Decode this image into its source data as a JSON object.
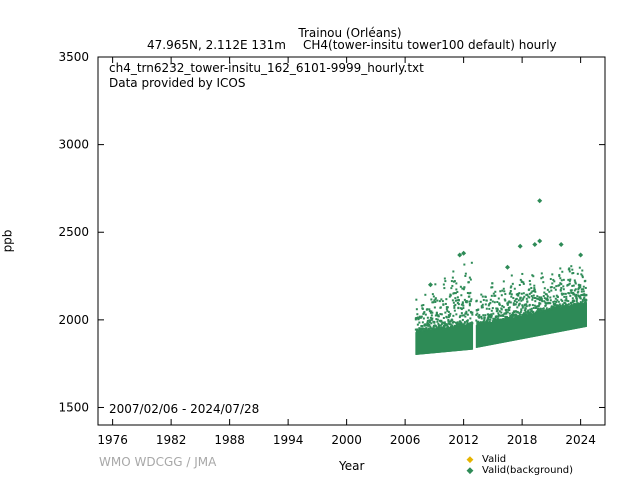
{
  "chart_data": {
    "type": "scatter",
    "title_line1": "Trainou (Orléans)",
    "title_line2_left": "47.965N, 2.112E 131m",
    "title_line2_right": "CH4(tower-insitu tower100 default) hourly",
    "file_label": "ch4_trn6232_tower-insitu_162_6101-9999_hourly.txt",
    "provider_label": "Data provided by ICOS",
    "date_range": "2007/02/06 - 2024/07/28",
    "xlabel": "Year",
    "ylabel": "ppb",
    "xlim": [
      1974.5,
      2026.5
    ],
    "ylim": [
      1400,
      3500
    ],
    "xticks": [
      1976,
      1982,
      1988,
      1994,
      2000,
      2006,
      2012,
      2018,
      2024
    ],
    "yticks": [
      1500,
      2000,
      2500,
      3000,
      3500
    ],
    "legend": [
      {
        "label": "Valid",
        "color": "#e6b400"
      },
      {
        "label": "Valid(background)",
        "color": "#2e8b57"
      }
    ],
    "series": [
      {
        "name": "Valid(background)",
        "color": "#2e8b57",
        "segments": [
          {
            "x_start": 2007.1,
            "x_end": 2012.9,
            "base_start": 1880,
            "base_end": 1930,
            "min_start": 1800,
            "min_end": 1830,
            "max_start": 2080,
            "max_end": 2300
          },
          {
            "x_start": 2013.3,
            "x_end": 2024.6,
            "base_start": 1920,
            "base_end": 2050,
            "min_start": 1840,
            "min_end": 1960,
            "max_start": 2150,
            "max_end": 2300
          }
        ],
        "outliers": [
          {
            "x": 2011.6,
            "y": 2370
          },
          {
            "x": 2012.0,
            "y": 2380
          },
          {
            "x": 2017.8,
            "y": 2420
          },
          {
            "x": 2019.3,
            "y": 2430
          },
          {
            "x": 2019.8,
            "y": 2680
          },
          {
            "x": 2019.8,
            "y": 2450
          },
          {
            "x": 2022.0,
            "y": 2430
          },
          {
            "x": 2024.0,
            "y": 2370
          },
          {
            "x": 2008.6,
            "y": 2200
          },
          {
            "x": 2016.5,
            "y": 2300
          }
        ]
      }
    ]
  },
  "footer": {
    "credit": "WMO WDCGG / JMA"
  }
}
